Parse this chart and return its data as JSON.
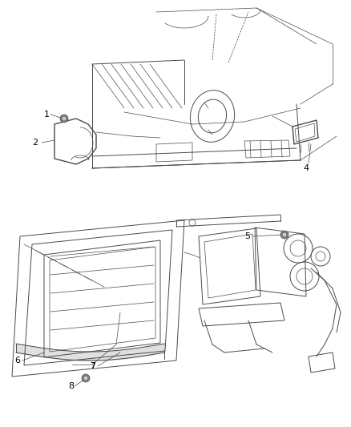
{
  "background_color": "#ffffff",
  "line_color": "#4a4a4a",
  "label_color": "#000000",
  "fig_width": 4.38,
  "fig_height": 5.33,
  "dpi": 100
}
